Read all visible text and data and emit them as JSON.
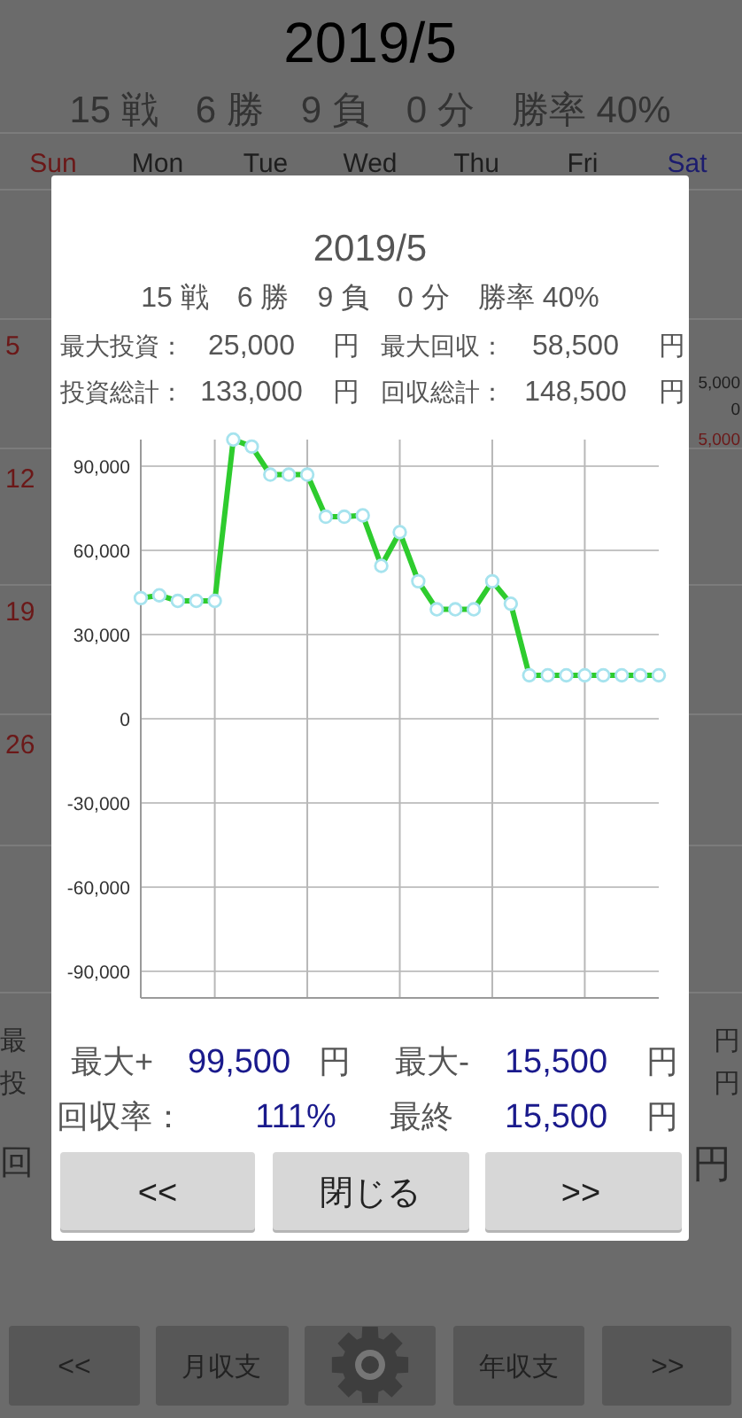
{
  "chart_data": {
    "type": "line",
    "title": "2019/5",
    "subtitle": "15 戦　6 勝　9 負　0 分　勝率 40%",
    "categories": [
      null,
      null,
      null,
      null,
      null,
      null,
      null,
      null,
      null,
      null,
      null,
      null,
      null,
      null,
      null,
      null,
      null,
      null,
      null,
      null,
      null,
      null,
      null,
      null,
      null,
      null,
      null,
      null,
      null
    ],
    "ylim": [
      -99500,
      99500
    ],
    "yticks": [
      {
        "value": -90000,
        "label": "-90,000"
      },
      {
        "value": -60000,
        "label": "-60,000"
      },
      {
        "value": -30000,
        "label": "-30,000"
      },
      0,
      {
        "value": 30000,
        "label": "30,000"
      },
      {
        "value": 60000,
        "label": "60,000"
      },
      {
        "value": 90000,
        "label": "90,000"
      }
    ],
    "series": [
      {
        "color": "#2ecc2e",
        "values": [
          43000,
          44000,
          42000,
          42000,
          42000,
          99500,
          97000,
          87000,
          87000,
          87000,
          72000,
          72000,
          72500,
          54500,
          66500,
          49000,
          39000,
          39000,
          39000,
          49000,
          41000,
          15500,
          15500,
          15500,
          15500,
          15500,
          15500,
          15500,
          15500
        ]
      }
    ],
    "grid": true,
    "marker": "circle",
    "line_style": "solid",
    "annotations": [
      "2019/5",
      "15 戦　6 勝　9 負　0 分　勝率 40%",
      "Sun",
      "Mon",
      "Tue",
      "Wed",
      "Thu",
      "Fri",
      "Sat",
      "5",
      "12",
      "19",
      "26",
      "5,000",
      "0",
      "5,000",
      "最",
      "投",
      "回",
      "円",
      "円",
      "円",
      "<<",
      "月収支",
      "年収支",
      ">>",
      "最大投資：",
      "25,000",
      "円",
      "最大回収：",
      "58,500",
      "円",
      "投資総計：",
      "133,000",
      "円",
      "回収総計：",
      "148,500",
      "円",
      "最大+",
      "99,500",
      "円",
      "最大-",
      "15,500",
      "円",
      "回収率：",
      "111%",
      "最終",
      "15,500",
      "円",
      "<<",
      "閉じる",
      ">>"
    ]
  }
}
